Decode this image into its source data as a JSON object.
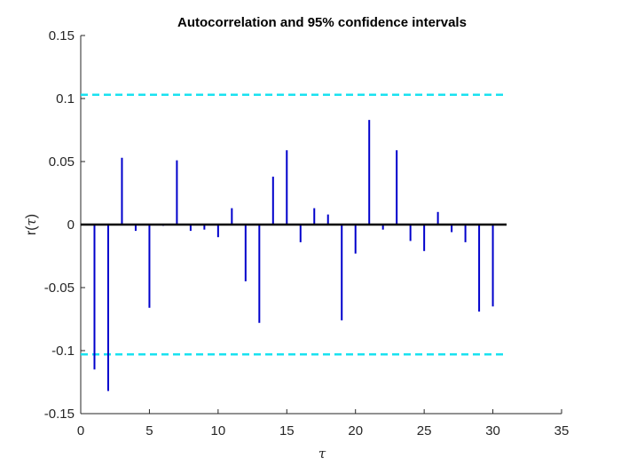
{
  "chart_data": {
    "type": "stem",
    "title": "Autocorrelation and 95% confidence intervals",
    "xlabel": "τ",
    "ylabel_prefix": "r(",
    "ylabel_var": "τ",
    "ylabel_suffix": ")",
    "xlim": [
      0,
      35
    ],
    "ylim": [
      -0.15,
      0.15
    ],
    "xticks": [
      0,
      5,
      10,
      15,
      20,
      25,
      30,
      35
    ],
    "xtick_labels": [
      "0",
      "5",
      "10",
      "15",
      "20",
      "25",
      "30",
      "35"
    ],
    "yticks": [
      0.15,
      0.1,
      0.05,
      0,
      -0.05,
      -0.1,
      -0.15
    ],
    "ytick_labels": [
      "0.15",
      "0.1",
      "0.05",
      "0",
      "-0.05",
      "-0.1",
      "-0.15"
    ],
    "lags": [
      1,
      2,
      3,
      4,
      5,
      6,
      7,
      8,
      9,
      10,
      11,
      12,
      13,
      14,
      15,
      16,
      17,
      18,
      19,
      20,
      21,
      22,
      23,
      24,
      25,
      26,
      27,
      28,
      29,
      30
    ],
    "values": [
      -0.115,
      -0.132,
      0.053,
      -0.005,
      -0.066,
      -0.001,
      0.051,
      -0.005,
      -0.004,
      -0.01,
      0.013,
      -0.045,
      -0.078,
      0.038,
      0.059,
      -0.014,
      0.013,
      0.008,
      -0.076,
      -0.023,
      0.083,
      -0.004,
      0.059,
      -0.013,
      -0.021,
      0.01,
      -0.006,
      -0.014,
      -0.069,
      -0.065
    ],
    "confidence_bounds": [
      0.103,
      -0.103
    ],
    "baseline_range": [
      0,
      31
    ],
    "stem_color": "#0000cc",
    "bound_color": "#19e2f0",
    "baseline_color": "#000000",
    "grid": false
  }
}
